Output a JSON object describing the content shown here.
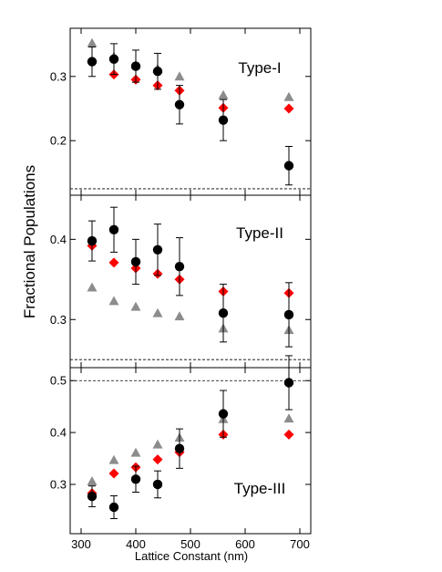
{
  "chart_data": {
    "type": "scatter",
    "layout": "three vertically stacked panels sharing x axis",
    "xlabel": "Lattice Constant (nm)",
    "ylabel": "Fractional Populations",
    "xlim": [
      280,
      720
    ],
    "x_ticks": [
      300,
      400,
      500,
      600,
      700
    ],
    "x": [
      320,
      360,
      400,
      440,
      480,
      560,
      680
    ],
    "series_styles": [
      {
        "marker": "circle",
        "color": "#000000",
        "error_bars": true
      },
      {
        "marker": "diamond",
        "color": "#ff0000",
        "error_bars": false
      },
      {
        "marker": "triangle",
        "color": "#8c8c8c",
        "error_bars": false
      }
    ],
    "panels": [
      {
        "label": "Type-I",
        "ylim": [
          0.115,
          0.375
        ],
        "y_ticks": [
          0.2,
          0.3
        ],
        "y_tick_labels": [
          "0.2",
          "0.3"
        ],
        "reference_line": 0.125,
        "series": [
          {
            "values": [
              0.323,
              0.327,
              0.316,
              0.308,
              0.256,
              0.232,
              0.161
            ],
            "err": [
              0.023,
              0.024,
              0.025,
              0.028,
              0.03,
              0.032,
              0.03
            ]
          },
          {
            "values": [
              0.323,
              0.303,
              0.295,
              0.286,
              0.278,
              0.251,
              0.25
            ]
          },
          {
            "values": [
              0.352,
              0.331,
              0.318,
              0.312,
              0.3,
              0.271,
              0.268
            ]
          }
        ]
      },
      {
        "label": "Type-II",
        "ylim": [
          0.24,
          0.455
        ],
        "y_ticks": [
          0.3,
          0.4
        ],
        "y_tick_labels": [
          "0.3",
          "0.4"
        ],
        "reference_line": 0.25,
        "series": [
          {
            "values": [
              0.398,
              0.412,
              0.372,
              0.387,
              0.366,
              0.308,
              0.306
            ],
            "err": [
              0.025,
              0.028,
              0.028,
              0.032,
              0.036,
              0.036,
              0.04
            ]
          },
          {
            "values": [
              0.392,
              0.371,
              0.364,
              0.357,
              0.35,
              0.335,
              0.333
            ]
          },
          {
            "values": [
              0.34,
              0.323,
              0.316,
              0.308,
              0.304,
              0.289,
              0.287
            ]
          }
        ]
      },
      {
        "label": "Type-III",
        "ylim": [
          0.205,
          0.525
        ],
        "y_ticks": [
          0.3,
          0.4,
          0.5
        ],
        "y_tick_labels": [
          "0.3",
          "0.4",
          "0.5"
        ],
        "reference_line": 0.5,
        "series": [
          {
            "values": [
              0.277,
              0.256,
              0.31,
              0.3,
              0.369,
              0.436,
              0.496
            ],
            "err": [
              0.02,
              0.022,
              0.025,
              0.026,
              0.038,
              0.045,
              0.052
            ]
          },
          {
            "values": [
              0.283,
              0.321,
              0.333,
              0.348,
              0.362,
              0.396,
              0.396
            ]
          },
          {
            "values": [
              0.306,
              0.347,
              0.361,
              0.377,
              0.39,
              0.426,
              0.427
            ]
          }
        ]
      }
    ]
  }
}
